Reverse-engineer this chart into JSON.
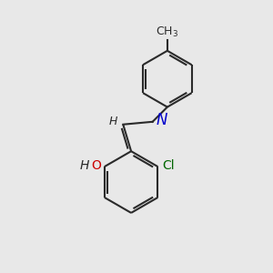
{
  "bg_color": "#e8e8e8",
  "bond_color": "#2a2a2a",
  "bond_width": 1.5,
  "atom_colors": {
    "N": "#0000cc",
    "O": "#cc0000",
    "Cl": "#006600",
    "H": "#2a2a2a",
    "C": "#2a2a2a"
  },
  "font_size_atom": 10,
  "font_size_h": 9,
  "font_size_ch3": 9
}
